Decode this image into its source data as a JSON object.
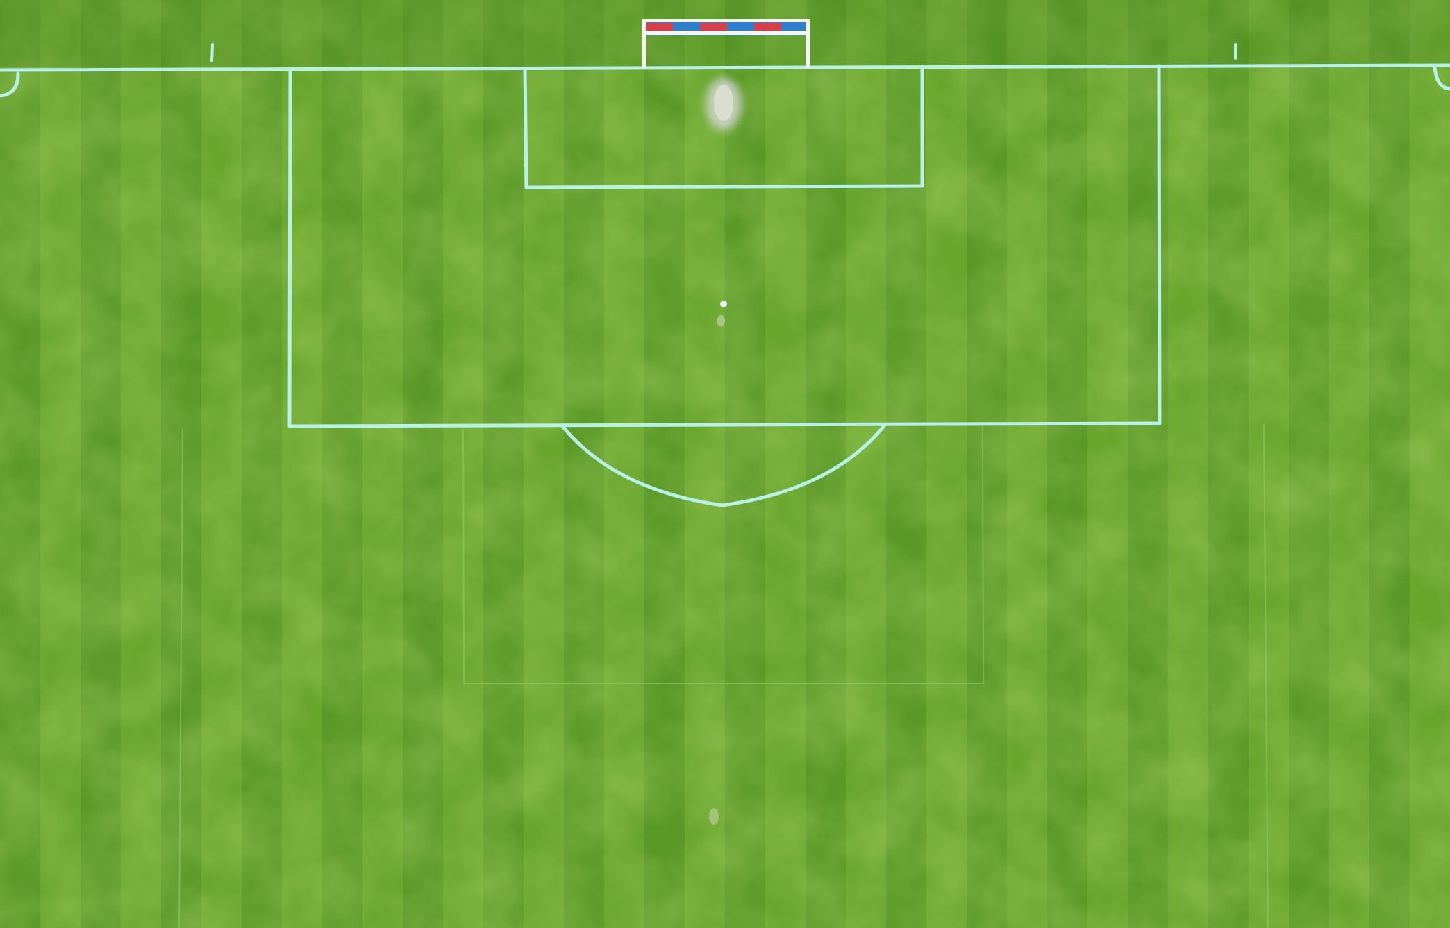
{
  "image": {
    "subject": "aerial-soccer-pitch",
    "colors": {
      "grass_dark": "#3f7d17",
      "grass_mid": "#569a22",
      "grass_light": "#7cb832",
      "line_paint": "#b8f0e6",
      "faint_line": "#8fce6a",
      "goal_frame": "#f4f4f0",
      "net_red": "#d6404a",
      "net_blue": "#2f7fd0",
      "worn_patch": "#c7cfc0"
    }
  }
}
